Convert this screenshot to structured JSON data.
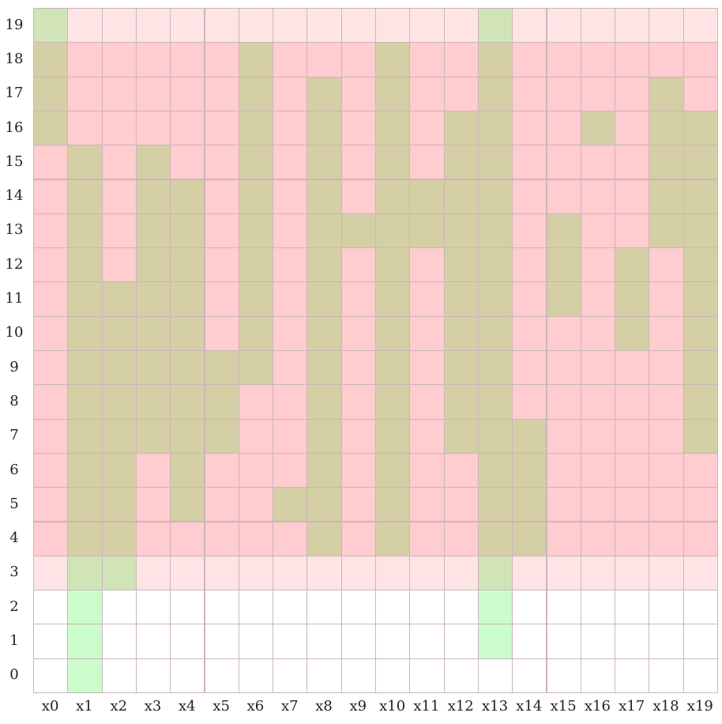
{
  "colors": {
    "white": "#ffffff",
    "light-pink": "#ffe4e6",
    "pink": "#ffccd0",
    "olive": "#d4cfa4",
    "light-green": "#d0e4b8",
    "green": "#cbfccc"
  },
  "columns": [
    "x0",
    "x1",
    "x2",
    "x3",
    "x4",
    "x5",
    "x6",
    "x7",
    "x8",
    "x9",
    "x10",
    "x11",
    "x12",
    "x13",
    "x14",
    "x15",
    "x16",
    "x17",
    "x18",
    "x19"
  ],
  "rows": [
    "19",
    "18",
    "17",
    "16",
    "15",
    "14",
    "13",
    "12",
    "11",
    "10",
    "9",
    "8",
    "7",
    "6",
    "5",
    "4",
    "3",
    "2",
    "1",
    "0"
  ],
  "cells": [
    "GLLLLLLLLLLLLGLLLLLL",
    "OPPPPPOPPPOPPOPPPPPP",
    "OPPPPPOPOPOPPOPPPPOP",
    "OPPPPPOPOPOPOOPPOPOO",
    "POPOPPOPOPOPOOPPPPOO",
    "POPOOPOPOPOOOOPPPPOO",
    "POPOOPOPOOOOOOPOPPOO",
    "POPOOPOPOPOPOOPOPOPO",
    "POOOOPOPOPOPOOPOPOPO",
    "POOOOPOPOPOPOOPPPOPO",
    "POOOOOOPOPOPOOPPPPPO",
    "POOOOOPPOPOPOOPPPPPO",
    "POOOOOPPOPOPOOOPPPPO",
    "POOPOPPPOPOPPOOPPPPP",
    "POOPOPPOOPOPPOOPPPPP",
    "POOPPPPPOPOPPOOPPPPP",
    "LGGLLLLLLLLLLGLLLLLL",
    "WFWWWWWWWWWWWFWWWWWW",
    "WFWWWWWWWWWWWFWWWWWW",
    "WFWWWWWWWWWWWWWWWWWW"
  ]
}
